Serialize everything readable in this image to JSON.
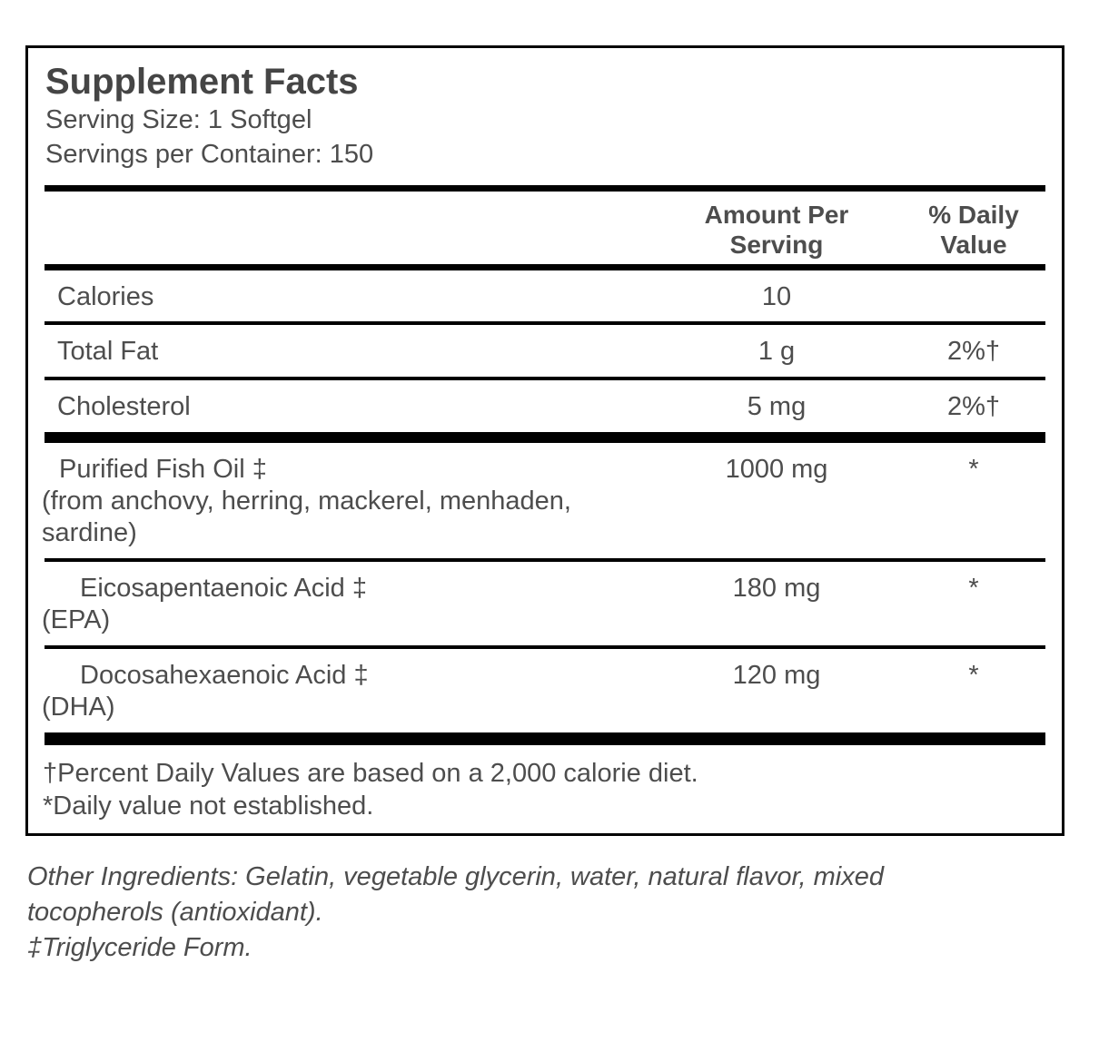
{
  "title": "Supplement Facts",
  "serving_size": "Serving Size: 1 Softgel",
  "servings_per_container": "Servings per Container: 150",
  "header": {
    "amount": "Amount Per Serving",
    "daily_value": "% Daily Value"
  },
  "rows": [
    {
      "name": "Calories",
      "amount": "10",
      "dv": ""
    },
    {
      "name": "Total Fat",
      "amount": "1 g",
      "dv": "2%†"
    },
    {
      "name": "Cholesterol",
      "amount": "5 mg",
      "dv": "2%†"
    },
    {
      "name": "Purified Fish Oil ‡",
      "detail": "(from anchovy, herring, mackerel, menhaden, sardine)",
      "amount": "1000 mg",
      "dv": "*"
    },
    {
      "name": "Eicosapentaenoic Acid ‡",
      "detail": "(EPA)",
      "amount": "180 mg",
      "dv": "*"
    },
    {
      "name": "Docosahexaenoic Acid ‡",
      "detail": "(DHA)",
      "amount": "120 mg",
      "dv": "*"
    }
  ],
  "footnotes": {
    "daily_value_basis": "†Percent Daily Values are based on a 2,000 calorie diet.",
    "not_established": "*Daily value not established."
  },
  "other_ingredients": "Other Ingredients: Gelatin, vegetable glycerin, water, natural flavor, mixed tocopherols (antioxidant).",
  "form_note": "‡Triglyceride Form.",
  "colors": {
    "text": "#4d4d4d",
    "rule": "#000000",
    "background": "#ffffff"
  }
}
